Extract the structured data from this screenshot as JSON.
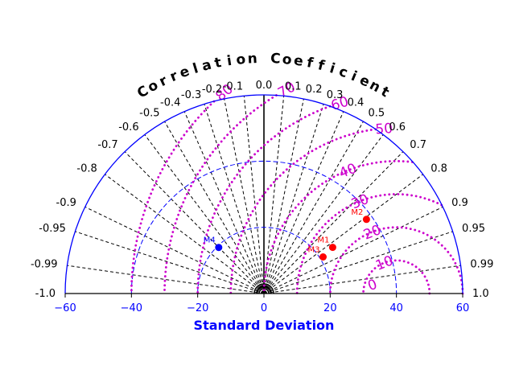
{
  "chart_data": {
    "type": "scatter",
    "subtype": "taylor-diagram-half",
    "title": "Correlation Coefficient",
    "xlabel": "Standard Deviation",
    "xlim": [
      -60,
      60
    ],
    "x_ticks": [
      "−60",
      "−40",
      "−20",
      "0",
      "20",
      "40",
      "60"
    ],
    "correlation_ticks": [
      "-1.0",
      "-0.99",
      "-0.95",
      "-0.9",
      "-0.8",
      "-0.7",
      "-0.6",
      "-0.5",
      "-0.4",
      "-0.3",
      "-0.2",
      "-0.1",
      "0.0",
      "0.1",
      "0.2",
      "0.3",
      "0.4",
      "0.5",
      "0.6",
      "0.7",
      "0.8",
      "0.9",
      "0.95",
      "0.99",
      "1.0"
    ],
    "std_circles": [
      20,
      40
    ],
    "rms_contours": {
      "center_std": 40,
      "levels": [
        10,
        20,
        30,
        40,
        50,
        60,
        70,
        80
      ],
      "labels": [
        "10",
        "20",
        "30",
        "40",
        "50",
        "60",
        "70",
        "80"
      ],
      "extra_label": "0"
    },
    "points": [
      {
        "label": "M1",
        "std": 25.0,
        "corr": 0.83,
        "color": "#ff0000"
      },
      {
        "label": "M2",
        "std": 38.2,
        "corr": 0.81,
        "color": "#ff0000"
      },
      {
        "label": "M3",
        "std": 21.0,
        "corr": 0.85,
        "color": "#ff0000"
      },
      {
        "label": "M4",
        "std": 19.5,
        "corr": -0.7,
        "color": "#0000ff"
      }
    ],
    "grid": true,
    "colors": {
      "axis": "#0000ff",
      "rms": "#cc00cc",
      "grid": "#000000",
      "std_circle": "#0000ff"
    }
  }
}
